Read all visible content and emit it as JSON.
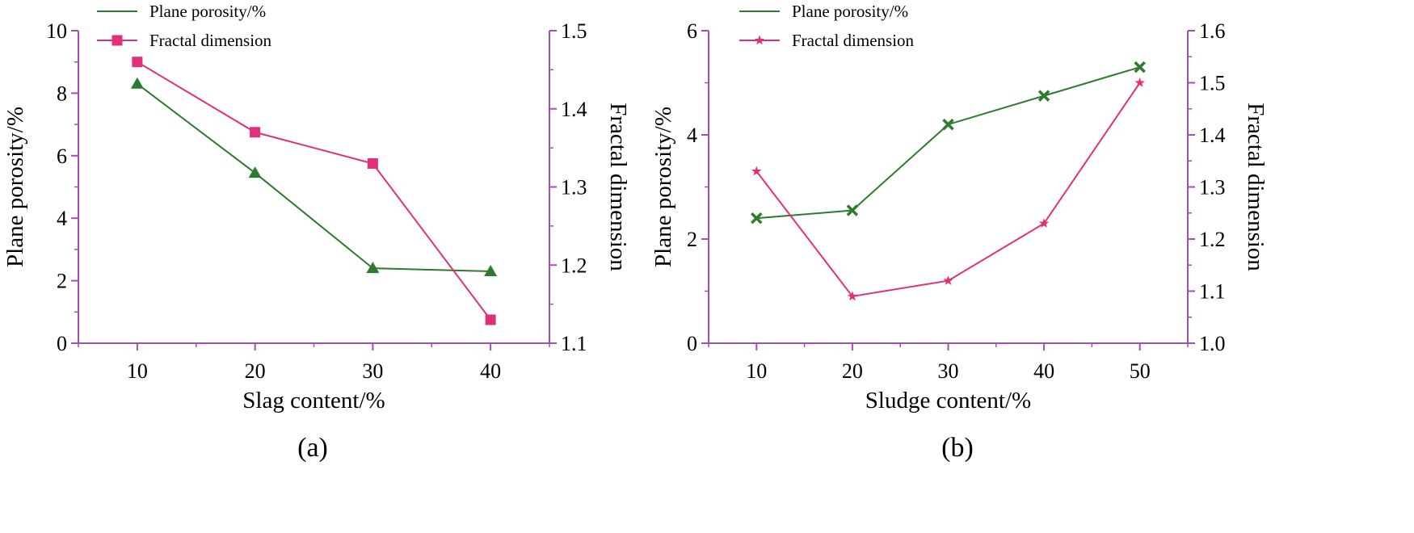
{
  "chart_data": [
    {
      "type": "line",
      "xlabel": "Slag content/%",
      "ylabel": "Plane porosity/%",
      "y2label": "Fractal dimension",
      "caption": "(a)",
      "x": [
        10,
        20,
        30,
        40
      ],
      "xticks": [
        10,
        20,
        30,
        40
      ],
      "xlim": [
        5,
        45
      ],
      "ylim": [
        0,
        10
      ],
      "yticks": [
        0,
        2,
        4,
        6,
        8,
        10
      ],
      "yticklabels": [
        "0",
        "2",
        "4",
        "6",
        "8",
        "10"
      ],
      "y2lim": [
        1.1,
        1.5
      ],
      "y2ticks": [
        1.1,
        1.2,
        1.3,
        1.4,
        1.5
      ],
      "y2ticklabels": [
        "1.1",
        "1.2",
        "1.3",
        "1.4",
        "1.5"
      ],
      "grid": false,
      "legend_position": "top-left",
      "series": [
        {
          "name": "Plane porosity/%",
          "axis": "left",
          "marker": "triangle",
          "color": "#2e7a2e",
          "values": [
            8.3,
            5.45,
            2.4,
            2.3
          ]
        },
        {
          "name": "Fractal dimension",
          "axis": "right",
          "marker": "square",
          "color": "#e0307a",
          "values": [
            1.46,
            1.37,
            1.33,
            1.13
          ]
        }
      ]
    },
    {
      "type": "line",
      "xlabel": "Sludge content/%",
      "ylabel": "Plane porosity/%",
      "y2label": "Fractal dimension",
      "caption": "(b)",
      "x": [
        10,
        20,
        30,
        40,
        50
      ],
      "xticks": [
        10,
        20,
        30,
        40,
        50
      ],
      "xlim": [
        5,
        55
      ],
      "ylim": [
        0,
        6
      ],
      "yticks": [
        0,
        2,
        4,
        6
      ],
      "yticklabels": [
        "0",
        "2",
        "4",
        "6"
      ],
      "y2lim": [
        1.0,
        1.6
      ],
      "y2ticks": [
        1.0,
        1.1,
        1.2,
        1.3,
        1.4,
        1.5,
        1.6
      ],
      "y2ticklabels": [
        "1.0",
        "1.1",
        "1.2",
        "1.3",
        "1.4",
        "1.5",
        "1.6"
      ],
      "grid": false,
      "legend_position": "top-left",
      "series": [
        {
          "name": "Plane porosity/%",
          "axis": "left",
          "marker": "x",
          "color": "#2e7a2e",
          "values": [
            2.4,
            2.55,
            4.2,
            4.75,
            5.3
          ]
        },
        {
          "name": "Fractal dimension",
          "axis": "right",
          "marker": "star",
          "color": "#e0307a",
          "values": [
            1.33,
            1.09,
            1.12,
            1.23,
            1.5
          ]
        }
      ]
    }
  ]
}
